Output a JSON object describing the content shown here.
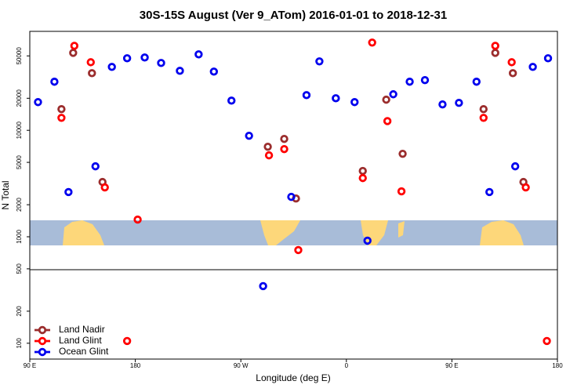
{
  "chart_data": {
    "type": "scatter",
    "title": "30S-15S August (Ver 9_ATom)   2016-01-01 to 2018-12-31",
    "x_label": "Longitude (deg E)",
    "y_label": "N Total",
    "yscale": "log",
    "xlim": [
      90,
      540
    ],
    "ylim": [
      71,
      85000
    ],
    "xticks": [
      {
        "value": 90,
        "label": "90 E"
      },
      180,
      {
        "value": 270,
        "label": "90 W"
      },
      {
        "value": 360,
        "label": "0"
      },
      {
        "value": 450,
        "label": "90 E"
      },
      {
        "value": 540,
        "label": "180"
      }
    ],
    "yticks": [
      100,
      200,
      500,
      1000,
      2000,
      5000,
      10000,
      20000,
      50000
    ],
    "legend": "bottom-left",
    "series": [
      {
        "name": "Land Nadir",
        "color": "#9b2d2d",
        "x": [
          117,
          127,
          143,
          152,
          293,
          307,
          317,
          374,
          394,
          408,
          477,
          487,
          502,
          511
        ],
        "values": [
          15800,
          53400,
          34400,
          3270,
          7010,
          8300,
          2290,
          4150,
          19400,
          6020,
          15800,
          53400,
          34400,
          3270
        ]
      },
      {
        "name": "Land Glint",
        "color": "#ff0000",
        "x": [
          117,
          128,
          142,
          154,
          182,
          173,
          294,
          307,
          319,
          374,
          382,
          395,
          407,
          477,
          487,
          501,
          513,
          531
        ],
        "values": [
          13100,
          62200,
          43600,
          2910,
          1450,
          105,
          5820,
          6660,
          750,
          3560,
          66700,
          12200,
          2670,
          13100,
          62200,
          43600,
          2910,
          105
        ]
      },
      {
        "name": "Ocean Glint",
        "color": "#0000ee",
        "x": [
          97,
          111,
          123,
          146,
          160,
          173,
          188,
          202,
          218,
          234,
          247,
          262,
          277,
          289,
          313,
          326,
          337,
          351,
          367,
          378,
          400,
          414,
          427,
          442,
          456,
          471,
          482,
          504,
          519,
          532
        ],
        "values": [
          18400,
          28600,
          2630,
          4590,
          39400,
          47500,
          48300,
          42900,
          36200,
          51700,
          35600,
          19000,
          8890,
          344,
          2370,
          21400,
          44400,
          20000,
          18400,
          919,
          21800,
          28600,
          29600,
          17500,
          18100,
          28600,
          2630,
          4590,
          39400,
          47500
        ]
      }
    ]
  }
}
